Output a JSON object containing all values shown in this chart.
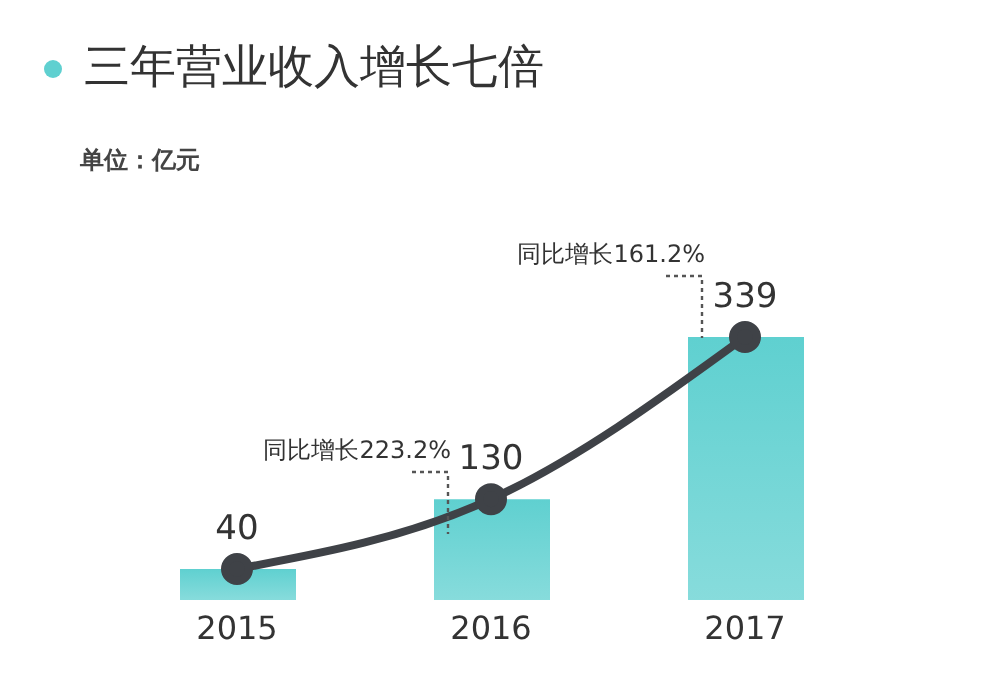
{
  "chart_data": {
    "type": "bar",
    "title": "三年营业收入增长七倍",
    "subtitle": "单位：亿元",
    "categories": [
      "2015",
      "2016",
      "2017"
    ],
    "series": [
      {
        "color": "#5fd0d0",
        "values": [
          40,
          130,
          339
        ]
      },
      {
        "type": "line",
        "color": "#3f4247",
        "values": [
          40,
          130,
          339
        ],
        "marker": "circle",
        "value_labels": [
          "40",
          "130",
          "339"
        ]
      }
    ],
    "legend": false,
    "grid": false,
    "annotations": [
      "同比增长223.2%",
      "同比增长161.2%"
    ]
  }
}
